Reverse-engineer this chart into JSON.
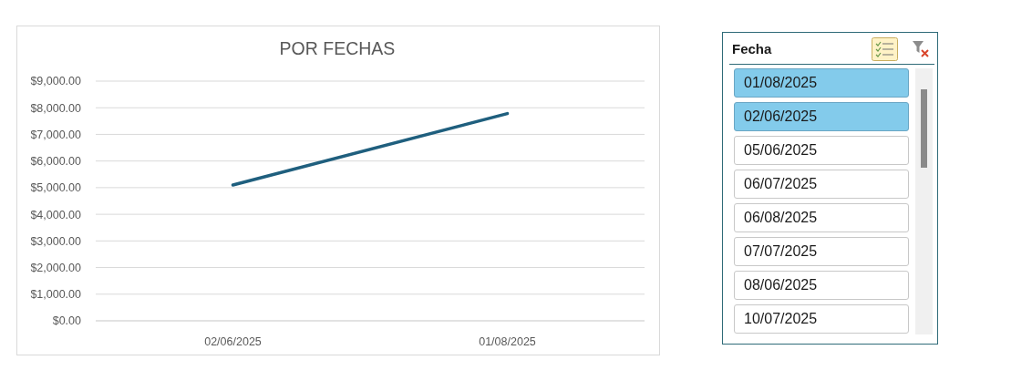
{
  "chart_data": [
    {
      "type": "line",
      "title": "POR FECHAS",
      "categories": [
        "02/06/2025",
        "01/08/2025"
      ],
      "series": [
        {
          "color": "#1f5f7e",
          "values": [
            5100,
            7780
          ]
        }
      ],
      "ylim": [
        0,
        9000
      ],
      "yticks": [
        {
          "value": 0,
          "label": "$0.00"
        },
        {
          "value": 1000,
          "label": "$1,000.00"
        },
        {
          "value": 2000,
          "label": "$2,000.00"
        },
        {
          "value": 3000,
          "label": "$3,000.00"
        },
        {
          "value": 4000,
          "label": "$4,000.00"
        },
        {
          "value": 5000,
          "label": "$5,000.00"
        },
        {
          "value": 6000,
          "label": "$6,000.00"
        },
        {
          "value": 7000,
          "label": "$7,000.00"
        },
        {
          "value": 8000,
          "label": "$8,000.00"
        },
        {
          "value": 9000,
          "label": "$9,000.00"
        }
      ],
      "grid": "y",
      "marker": "none",
      "line_style": "solid"
    },
    {
      "type": "other",
      "title": "Fecha",
      "categories": [
        "01/08/2025",
        "02/06/2025",
        "05/06/2025",
        "06/07/2025",
        "06/08/2025",
        "07/07/2025",
        "08/06/2025",
        "10/07/2025"
      ],
      "colors": [
        "#83cbeb",
        "#83cbeb",
        "#ffffff",
        "#ffffff",
        "#ffffff",
        "#ffffff",
        "#ffffff",
        "#ffffff"
      ]
    }
  ]
}
